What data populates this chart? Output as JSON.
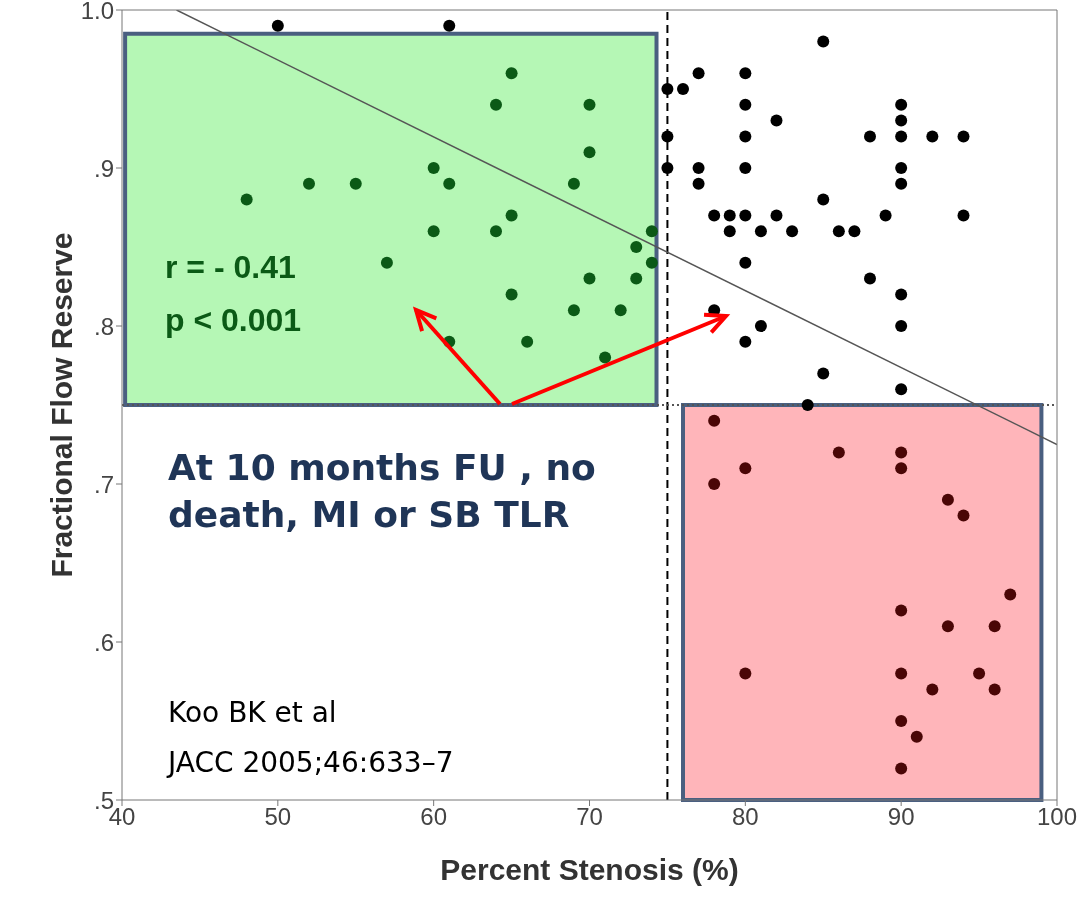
{
  "chart_data": {
    "type": "scatter",
    "xlabel": "Percent Stenosis (%)",
    "ylabel": "Fractional Flow Reserve",
    "xlim": [
      40,
      100
    ],
    "xticks": [
      40,
      50,
      60,
      70,
      80,
      90,
      100
    ],
    "ylim": [
      0.5,
      1.0
    ],
    "yticks": [
      {
        "value": 0.5,
        "label": ".5"
      },
      {
        "value": 0.6,
        "label": ".6"
      },
      {
        "value": 0.7,
        "label": ".7"
      },
      {
        "value": 0.8,
        "label": ".8"
      },
      {
        "value": 0.9,
        "label": ".9"
      },
      {
        "value": 1.0,
        "label": "1.0"
      }
    ],
    "marker": "circle",
    "series": [
      {
        "color": "#0b5a16",
        "x": [
          48,
          52,
          55,
          57,
          60,
          60,
          61,
          61,
          64,
          64,
          65,
          65,
          65,
          66,
          69,
          69,
          70,
          70,
          70,
          71,
          72,
          73,
          73,
          74,
          74
        ],
        "values": [
          0.88,
          0.89,
          0.89,
          0.84,
          0.9,
          0.86,
          0.89,
          0.79,
          0.94,
          0.86,
          0.96,
          0.87,
          0.82,
          0.79,
          0.89,
          0.81,
          0.94,
          0.91,
          0.83,
          0.78,
          0.81,
          0.85,
          0.83,
          0.86,
          0.84
        ]
      },
      {
        "color": "#000000",
        "x": [
          50,
          61,
          75,
          75,
          75,
          76,
          77,
          77,
          77,
          78,
          78,
          79,
          79,
          80,
          80,
          80,
          80,
          80,
          80,
          80,
          81,
          81,
          82,
          82,
          83,
          84,
          85,
          85,
          85,
          86,
          87,
          88,
          88,
          89,
          90,
          90,
          90,
          90,
          90,
          90,
          90,
          90,
          92,
          94,
          94
        ],
        "values": [
          0.99,
          0.99,
          0.95,
          0.92,
          0.9,
          0.95,
          0.96,
          0.9,
          0.89,
          0.87,
          0.81,
          0.87,
          0.86,
          0.96,
          0.94,
          0.92,
          0.9,
          0.87,
          0.84,
          0.79,
          0.86,
          0.8,
          0.93,
          0.87,
          0.86,
          0.75,
          0.98,
          0.88,
          0.77,
          0.86,
          0.86,
          0.92,
          0.83,
          0.87,
          0.94,
          0.93,
          0.92,
          0.9,
          0.89,
          0.82,
          0.8,
          0.76,
          0.92,
          0.92,
          0.87
        ]
      },
      {
        "color": "#4a0606",
        "x": [
          78,
          78,
          80,
          80,
          86,
          90,
          90,
          90,
          90,
          90,
          90,
          91,
          92,
          93,
          93,
          94,
          95,
          96,
          96,
          97
        ],
        "values": [
          0.74,
          0.7,
          0.71,
          0.58,
          0.72,
          0.72,
          0.71,
          0.62,
          0.58,
          0.55,
          0.52,
          0.54,
          0.57,
          0.69,
          0.61,
          0.68,
          0.58,
          0.61,
          0.57,
          0.63
        ]
      },
      {
        "type": "line",
        "color": "#555555",
        "marker": "none",
        "x": [
          43.5,
          100
        ],
        "values": [
          1.0,
          0.725
        ]
      }
    ],
    "ref_lines": [
      {
        "axis": "x",
        "value": 75,
        "line_style": "dashed",
        "color": "#000000"
      },
      {
        "axis": "y",
        "value": 0.75,
        "line_style": "dotted",
        "color": "#555555"
      }
    ],
    "bands": [
      {
        "axis": "x",
        "from": 40.2,
        "to": 74.3,
        "color": "#b5f7b5"
      },
      {
        "axis": "x",
        "from": 76,
        "to": 99,
        "color": "#ffb5ba"
      }
    ],
    "annotations": [
      "r = - 0.41",
      "p < 0.001",
      "At 10 months FU , no death, MI or SB TLR",
      "Koo BK et al",
      "JACC 2005;46:633–7"
    ]
  }
}
